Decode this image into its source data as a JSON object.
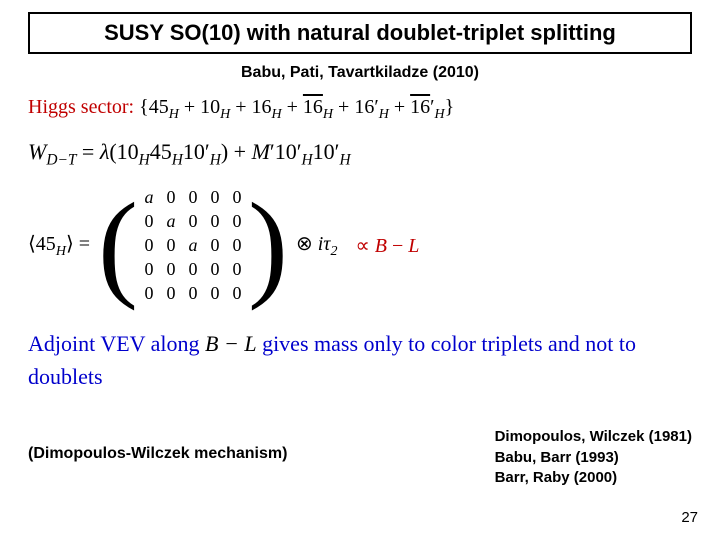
{
  "title": "SUSY SO(10) with natural doublet-triplet splitting",
  "title_fontsize": 22,
  "top_citation": "Babu, Pati, Tavartkiladze (2010)",
  "top_citation_fontsize": 16,
  "colors": {
    "red": "#c00000",
    "blue": "#0000cc",
    "black": "#000000",
    "bg": "#ffffff"
  },
  "higgs": {
    "label": "Higgs sector:",
    "fields": "{45_H + 10_H + 16_H + 16̄_H + 16′_H + 16̄′_H}",
    "fontsize": 20
  },
  "superpotential": {
    "lhs": "W_{D−T}",
    "rhs": "= λ(10_H 45_H 10′_H) + M′ 10′_H 10′_H",
    "fontsize": 22
  },
  "vev": {
    "lhs": "⟨45_H⟩ =",
    "matrix": [
      [
        "a",
        "0",
        "0",
        "0",
        "0"
      ],
      [
        "0",
        "a",
        "0",
        "0",
        "0"
      ],
      [
        "0",
        "0",
        "a",
        "0",
        "0"
      ],
      [
        "0",
        "0",
        "0",
        "0",
        "0"
      ],
      [
        "0",
        "0",
        "0",
        "0",
        "0"
      ]
    ],
    "tensor": "⊗ iτ₂",
    "prop": "∝ B − L",
    "fontsize": 20,
    "matrix_fontsize": 18
  },
  "adjoint_text": {
    "pre": "Adjoint VEV along ",
    "bl": "B − L",
    "post": " gives mass only to color triplets and not to doublets",
    "fontsize": 22
  },
  "mechanism": "(Dimopoulos-Wilczek mechanism)",
  "mechanism_fontsize": 16,
  "refs": [
    "Dimopoulos, Wilczek (1981)",
    "Babu, Barr (1993)",
    "Barr, Raby (2000)"
  ],
  "refs_fontsize": 15,
  "page_number": "27",
  "page_number_fontsize": 15
}
